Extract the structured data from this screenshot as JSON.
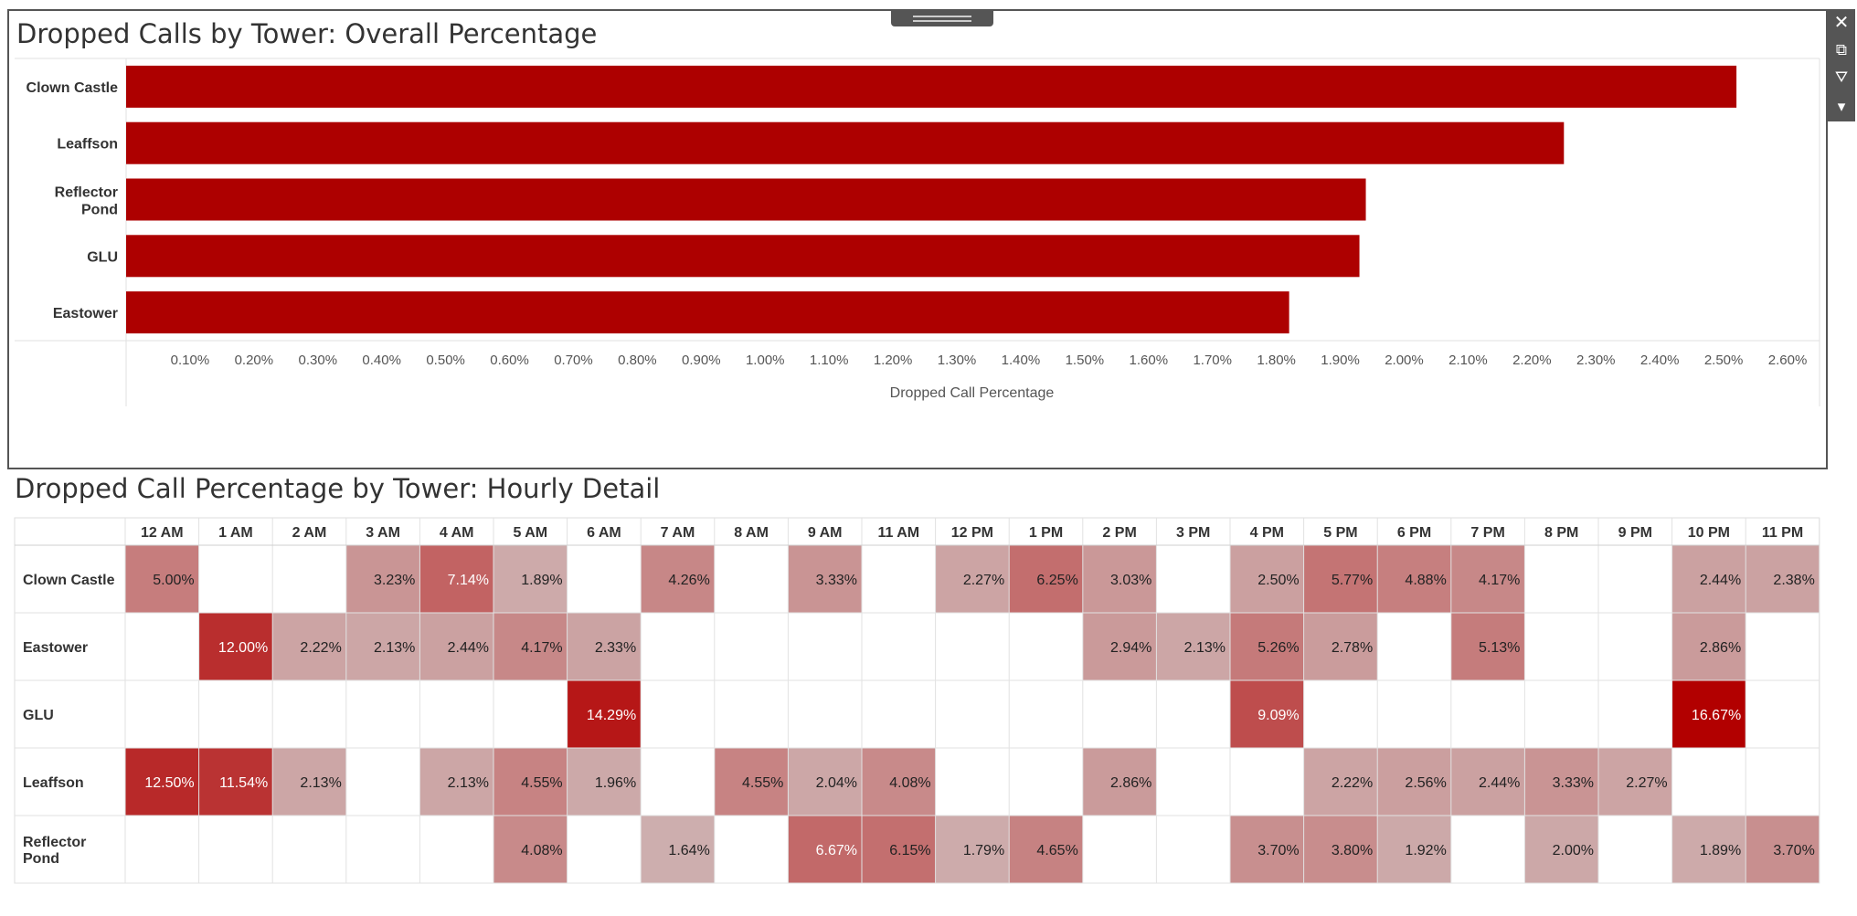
{
  "window": {
    "toolbar_icons": [
      "close-icon",
      "popout-icon",
      "filter-icon",
      "dropdown-icon"
    ],
    "toolbar_glyphs": [
      "✕",
      "⧉",
      "⛛",
      "▾"
    ]
  },
  "bar_chart": {
    "title": "Dropped Calls by Tower: Overall Percentage"
  },
  "heatmap": {
    "title": "Dropped Call Percentage by Tower: Hourly Detail"
  },
  "colors": {
    "bar": "#ad0000",
    "heat_max": "#b20000",
    "heat_min": "#d3d3d3",
    "grid": "#dddddd",
    "text": "#333333"
  },
  "chart_data": [
    {
      "type": "bar",
      "orientation": "horizontal",
      "title": "Dropped Calls by Tower: Overall Percentage",
      "categories": [
        "Clown Castle",
        "Leaffson",
        "Reflector Pond",
        "GLU",
        "Eastower"
      ],
      "values": [
        2.52,
        2.25,
        1.94,
        1.93,
        1.82
      ],
      "xlabel": "Dropped Call Percentage",
      "ylabel": "",
      "xlim": [
        0,
        2.65
      ],
      "xticks": [
        0.1,
        0.2,
        0.3,
        0.4,
        0.5,
        0.6,
        0.7,
        0.8,
        0.9,
        1.0,
        1.1,
        1.2,
        1.3,
        1.4,
        1.5,
        1.6,
        1.7,
        1.8,
        1.9,
        2.0,
        2.1,
        2.2,
        2.3,
        2.4,
        2.5,
        2.6
      ],
      "xtick_labels": [
        "0.10%",
        "0.20%",
        "0.30%",
        "0.40%",
        "0.50%",
        "0.60%",
        "0.70%",
        "0.80%",
        "0.90%",
        "1.00%",
        "1.10%",
        "1.20%",
        "1.30%",
        "1.40%",
        "1.50%",
        "1.60%",
        "1.70%",
        "1.80%",
        "1.90%",
        "2.00%",
        "2.10%",
        "2.20%",
        "2.30%",
        "2.40%",
        "2.50%",
        "2.60%"
      ],
      "grid": false
    },
    {
      "type": "heatmap",
      "title": "Dropped Call Percentage by Tower: Hourly Detail",
      "x": [
        "12 AM",
        "1 AM",
        "2 AM",
        "3 AM",
        "4 AM",
        "5 AM",
        "6 AM",
        "7 AM",
        "8 AM",
        "9 AM",
        "11 AM",
        "12 PM",
        "1 PM",
        "2 PM",
        "3 PM",
        "4 PM",
        "5 PM",
        "6 PM",
        "7 PM",
        "8 PM",
        "9 PM",
        "10 PM",
        "11 PM"
      ],
      "y": [
        "Clown Castle",
        "Eastower",
        "GLU",
        "Leaffson",
        "Reflector Pond"
      ],
      "values": [
        [
          5.0,
          null,
          null,
          3.23,
          7.14,
          1.89,
          null,
          4.26,
          null,
          3.33,
          null,
          2.27,
          6.25,
          3.03,
          null,
          2.5,
          5.77,
          4.88,
          4.17,
          null,
          null,
          2.44,
          2.38
        ],
        [
          null,
          12.0,
          2.22,
          2.13,
          2.44,
          4.17,
          2.33,
          null,
          null,
          null,
          null,
          null,
          null,
          2.94,
          2.13,
          5.26,
          2.78,
          null,
          5.13,
          null,
          null,
          2.86,
          null
        ],
        [
          null,
          null,
          null,
          null,
          null,
          null,
          14.29,
          null,
          null,
          null,
          null,
          null,
          null,
          null,
          null,
          9.09,
          null,
          null,
          null,
          null,
          null,
          16.67,
          null
        ],
        [
          12.5,
          11.54,
          2.13,
          null,
          2.13,
          4.55,
          1.96,
          null,
          4.55,
          2.04,
          4.08,
          null,
          null,
          2.86,
          null,
          null,
          2.22,
          2.56,
          2.44,
          3.33,
          2.27,
          null,
          null
        ],
        [
          null,
          null,
          null,
          null,
          null,
          4.08,
          null,
          1.64,
          null,
          6.67,
          6.15,
          1.79,
          4.65,
          null,
          null,
          3.7,
          3.8,
          1.92,
          null,
          2.0,
          null,
          1.89,
          3.7
        ]
      ],
      "value_suffix": "%"
    }
  ]
}
